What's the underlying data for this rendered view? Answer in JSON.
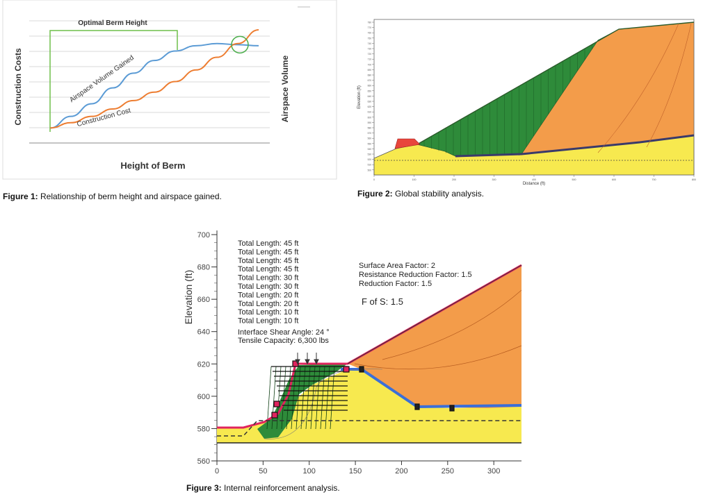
{
  "figure1": {
    "caption_label": "Figure 1:",
    "caption_text": " Relationship of berm height and airspace gained.",
    "chart_data": {
      "type": "line",
      "xlabel": "Height of Berm",
      "ylabel_left": "Construction Costs",
      "ylabel_right": "Airspace Volume",
      "annotation": "Optimal Berm Height",
      "grid": true,
      "xlim": [
        0,
        10
      ],
      "ylim": [
        0,
        10
      ],
      "series": [
        {
          "name": "Airspace Volume Gained",
          "color": "#5b9bd5",
          "x": [
            0,
            1,
            2,
            3,
            4,
            5,
            6,
            7,
            8,
            9,
            10
          ],
          "y": [
            0.5,
            1.6,
            2.8,
            4.3,
            5.7,
            6.9,
            7.8,
            8.3,
            8.5,
            8.4,
            8.3
          ]
        },
        {
          "name": "Construction Cost",
          "color": "#ed7d31",
          "x": [
            0,
            1,
            2,
            3,
            4,
            5,
            6,
            7,
            8,
            9,
            10
          ],
          "y": [
            0.5,
            1.0,
            1.6,
            2.3,
            3.1,
            3.9,
            4.9,
            6.0,
            7.2,
            8.5,
            9.8
          ]
        }
      ],
      "optimal_point": {
        "x": 9.1,
        "y": 8.4
      }
    }
  },
  "figure2": {
    "caption_label": "Figure 2:",
    "caption_text": " Global stability analysis.",
    "chart_data": {
      "type": "area",
      "xlabel": "Distance (ft)",
      "ylabel": "Elevation (ft)",
      "xlim": [
        0,
        800
      ],
      "ylim": [
        500,
        800
      ],
      "layers": [
        {
          "name": "foundation",
          "color": "#f7e94f"
        },
        {
          "name": "reinforced zone",
          "color": "#2e8b3a"
        },
        {
          "name": "waste fill",
          "color": "#f39c4a"
        },
        {
          "name": "berm",
          "color": "#e8463c"
        }
      ]
    }
  },
  "figure3": {
    "caption_label": "Figure 3:",
    "caption_text": " Internal reinforcement analysis.",
    "chart_data": {
      "type": "area",
      "ylabel": "Elevation (ft)",
      "xlim": [
        0,
        330
      ],
      "ylim": [
        560,
        700
      ],
      "x_ticks": [
        "0",
        "50",
        "100",
        "150",
        "200",
        "250",
        "300"
      ],
      "y_ticks": [
        "560",
        "580",
        "600",
        "620",
        "640",
        "660",
        "680",
        "700"
      ],
      "lengths_list": [
        "Total Length: 45 ft",
        "Total Length: 45 ft",
        "Total Length: 45 ft",
        "Total Length: 45 ft",
        "Total Length: 30 ft",
        "Total Length: 30 ft",
        "Total Length: 20 ft",
        "Total Length: 20 ft",
        "Total Length: 10 ft",
        "Total Length: 10 ft"
      ],
      "interface_shear": "Interface Shear Angle: 24 °",
      "tensile_capacity": "Tensile Capacity: 6,300 lbs",
      "factors": [
        "Surface Area Factor: 2",
        "Resistance Reduction Factor: 1.5",
        "Reduction Factor: 1.5"
      ],
      "fos": "F of S: 1.5",
      "colors": {
        "foundation": "#f7e94f",
        "fill": "#f39c4a",
        "reinforced": "#2e8b3a",
        "liner": "#3a6fd8",
        "cover": "#e0245e"
      }
    }
  }
}
